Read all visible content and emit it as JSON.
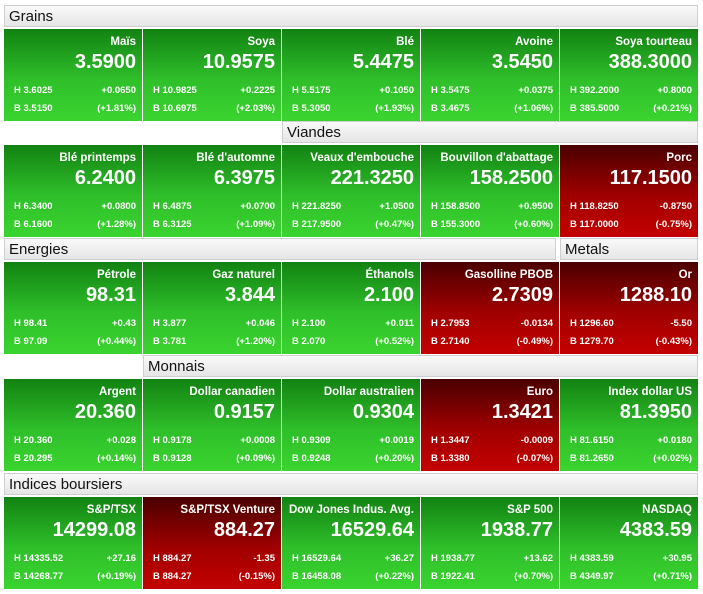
{
  "groups": [
    {
      "title": "Grains",
      "tiles": [
        {
          "name": "Maïs",
          "value": "3.5900",
          "high": "H 3.6025",
          "change": "+0.0650",
          "low": "B 3.5150",
          "pct": "(+1.81%)",
          "color": "green"
        },
        {
          "name": "Soya",
          "value": "10.9575",
          "high": "H 10.9825",
          "change": "+0.2225",
          "low": "B 10.6975",
          "pct": "(+2.03%)",
          "color": "green"
        },
        {
          "name": "Blé",
          "value": "5.4475",
          "high": "H 5.5175",
          "change": "+0.1050",
          "low": "B 5.3050",
          "pct": "(+1.93%)",
          "color": "green"
        },
        {
          "name": "Avoine",
          "value": "3.5450",
          "high": "H 3.5475",
          "change": "+0.0375",
          "low": "B 3.4675",
          "pct": "(+1.06%)",
          "color": "green"
        },
        {
          "name": "Soya tourteau",
          "value": "388.3000",
          "high": "H 392.2000",
          "change": "+0.8000",
          "low": "B 385.5000",
          "pct": "(+0.21%)",
          "color": "green"
        }
      ]
    },
    {
      "title": "Viandes",
      "tiles": [
        {
          "name": "Blé printemps",
          "value": "6.2400",
          "high": "H 6.3400",
          "change": "+0.0800",
          "low": "B 6.1600",
          "pct": "(+1.28%)",
          "color": "green"
        },
        {
          "name": "Blé d'automne",
          "value": "6.3975",
          "high": "H 6.4875",
          "change": "+0.0700",
          "low": "B 6.3125",
          "pct": "(+1.09%)",
          "color": "green"
        },
        {
          "name": "Veaux d'embouche",
          "value": "221.3250",
          "high": "H 221.8250",
          "change": "+1.0500",
          "low": "B 217.9500",
          "pct": "(+0.47%)",
          "color": "green"
        },
        {
          "name": "Bouvillon d'abattage",
          "value": "158.2500",
          "high": "H 158.8500",
          "change": "+0.9500",
          "low": "B 155.3000",
          "pct": "(+0.60%)",
          "color": "green"
        },
        {
          "name": "Porc",
          "value": "117.1500",
          "high": "H 118.8250",
          "change": "-0.8750",
          "low": "B 117.0000",
          "pct": "(-0.75%)",
          "color": "red"
        }
      ]
    },
    {
      "title": "Energies",
      "tiles": [
        {
          "name": "Pétrole",
          "value": "98.31",
          "high": "H 98.41",
          "change": "+0.43",
          "low": "B 97.09",
          "pct": "(+0.44%)",
          "color": "green"
        },
        {
          "name": "Gaz naturel",
          "value": "3.844",
          "high": "H 3.877",
          "change": "+0.046",
          "low": "B 3.781",
          "pct": "(+1.20%)",
          "color": "green"
        },
        {
          "name": "Éthanols",
          "value": "2.100",
          "high": "H 2.100",
          "change": "+0.011",
          "low": "B 2.070",
          "pct": "(+0.52%)",
          "color": "green"
        },
        {
          "name": "Gasolline PBOB",
          "value": "2.7309",
          "high": "H 2.7953",
          "change": "-0.0134",
          "low": "B 2.7140",
          "pct": "(-0.49%)",
          "color": "red"
        }
      ]
    },
    {
      "title": "Metals",
      "tiles": [
        {
          "name": "Or",
          "value": "1288.10",
          "high": "H 1296.60",
          "change": "-5.50",
          "low": "B 1279.70",
          "pct": "(-0.43%)",
          "color": "red"
        }
      ]
    },
    {
      "title": "Monnais",
      "tiles": [
        {
          "name": "Argent",
          "value": "20.360",
          "high": "H 20.360",
          "change": "+0.028",
          "low": "B 20.295",
          "pct": "(+0.14%)",
          "color": "green"
        },
        {
          "name": "Dollar canadien",
          "value": "0.9157",
          "high": "H 0.9178",
          "change": "+0.0008",
          "low": "B 0.9128",
          "pct": "(+0.09%)",
          "color": "green"
        },
        {
          "name": "Dollar australien",
          "value": "0.9304",
          "high": "H 0.9309",
          "change": "+0.0019",
          "low": "B 0.9248",
          "pct": "(+0.20%)",
          "color": "green"
        },
        {
          "name": "Euro",
          "value": "1.3421",
          "high": "H 1.3447",
          "change": "-0.0009",
          "low": "B 1.3380",
          "pct": "(-0.07%)",
          "color": "red"
        },
        {
          "name": "Index dollar US",
          "value": "81.3950",
          "high": "H 81.6150",
          "change": "+0.0180",
          "low": "B 81.2650",
          "pct": "(+0.02%)",
          "color": "green"
        }
      ]
    },
    {
      "title": "Indices boursiers",
      "tiles": [
        {
          "name": "S&P/TSX",
          "value": "14299.08",
          "high": "H 14335.52",
          "change": "+27.16",
          "low": "B 14268.77",
          "pct": "(+0.19%)",
          "color": "green"
        },
        {
          "name": "S&P/TSX Venture",
          "value": "884.27",
          "high": "H 884.27",
          "change": "-1.35",
          "low": "B 884.27",
          "pct": "(-0.15%)",
          "color": "red"
        },
        {
          "name": "Dow Jones Indus. Avg.",
          "value": "16529.64",
          "high": "H 16529.64",
          "change": "+36.27",
          "low": "B 16458.08",
          "pct": "(+0.22%)",
          "color": "green"
        },
        {
          "name": "S&P 500",
          "value": "1938.77",
          "high": "H 1938.77",
          "change": "+13.62",
          "low": "B 1922.41",
          "pct": "(+0.70%)",
          "color": "green"
        },
        {
          "name": "NASDAQ",
          "value": "4383.59",
          "high": "H 4383.59",
          "change": "+30.95",
          "low": "B 4349.97",
          "pct": "(+0.71%)",
          "color": "green"
        }
      ]
    }
  ]
}
